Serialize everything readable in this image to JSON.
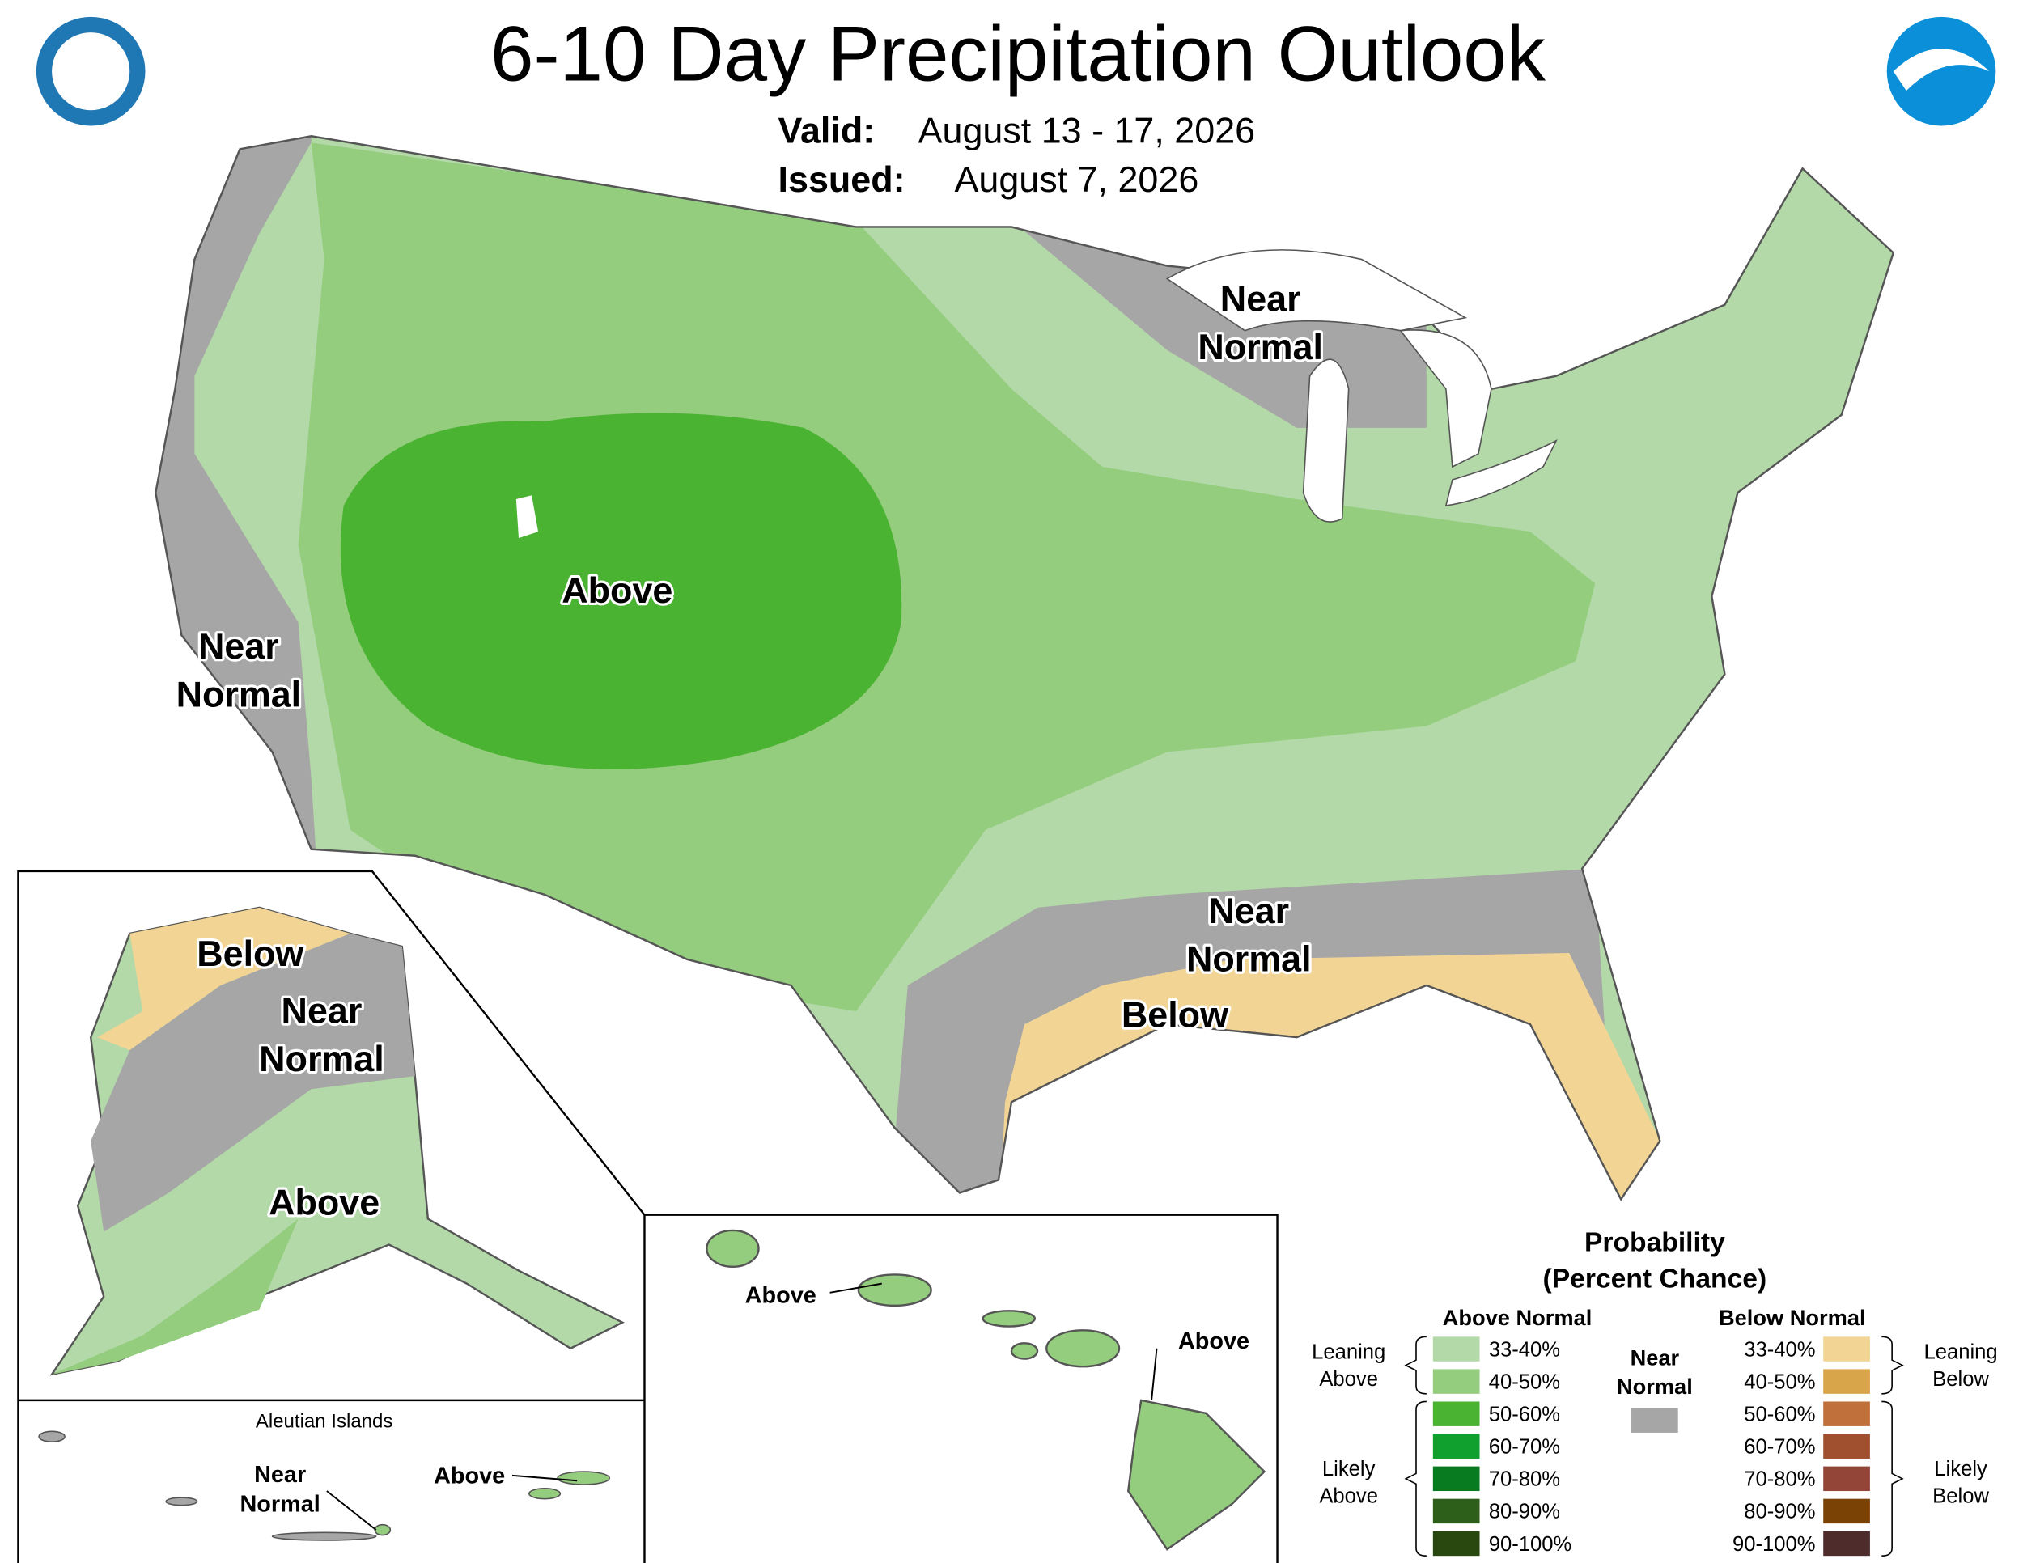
{
  "header": {
    "title": "6-10 Day Precipitation Outlook",
    "valid_label": "Valid:",
    "valid_date": "August 13 - 17, 2026",
    "issued_label": "Issued:",
    "issued_date": "August 7, 2026"
  },
  "map_labels": {
    "conus": [
      [
        "Near",
        "Normal"
      ],
      [
        "Above"
      ],
      [
        "Near",
        "Normal"
      ],
      [
        "Near",
        "Normal"
      ],
      [
        "Below"
      ]
    ],
    "alaska": [
      [
        "Below"
      ],
      [
        "Near",
        "Normal"
      ],
      [
        "Above"
      ]
    ],
    "aleutian_title": "Aleutian Islands",
    "aleutian": [
      [
        "Near",
        "Normal"
      ],
      [
        "Above"
      ]
    ],
    "hawaii": [
      [
        "Above"
      ],
      [
        "Above"
      ]
    ]
  },
  "legend": {
    "title": [
      "Probability",
      "(Percent Chance)"
    ],
    "above_header": "Above Normal",
    "below_header": "Below Normal",
    "near": [
      "Near",
      "Normal"
    ],
    "near_color": "#a6a6a6",
    "above": [
      {
        "label": "33-40%",
        "color": "#b3d9a8"
      },
      {
        "label": "40-50%",
        "color": "#94cd7e"
      },
      {
        "label": "50-60%",
        "color": "#4bb332"
      },
      {
        "label": "60-70%",
        "color": "#0fa02d"
      },
      {
        "label": "70-80%",
        "color": "#087a20"
      },
      {
        "label": "80-90%",
        "color": "#2e5f1a"
      },
      {
        "label": "90-100%",
        "color": "#28480f"
      }
    ],
    "below": [
      {
        "label": "33-40%",
        "color": "#f2d495"
      },
      {
        "label": "40-50%",
        "color": "#d9a54a"
      },
      {
        "label": "50-60%",
        "color": "#c0703a"
      },
      {
        "label": "60-70%",
        "color": "#a0502e"
      },
      {
        "label": "70-80%",
        "color": "#934537"
      },
      {
        "label": "80-90%",
        "color": "#7a4205"
      },
      {
        "label": "90-100%",
        "color": "#4e2c2c"
      }
    ],
    "leaning_above": [
      "Leaning",
      "Above"
    ],
    "likely_above": [
      "Likely",
      "Above"
    ],
    "leaning_below": [
      "Leaning",
      "Below"
    ],
    "likely_below": [
      "Likely",
      "Below"
    ]
  }
}
